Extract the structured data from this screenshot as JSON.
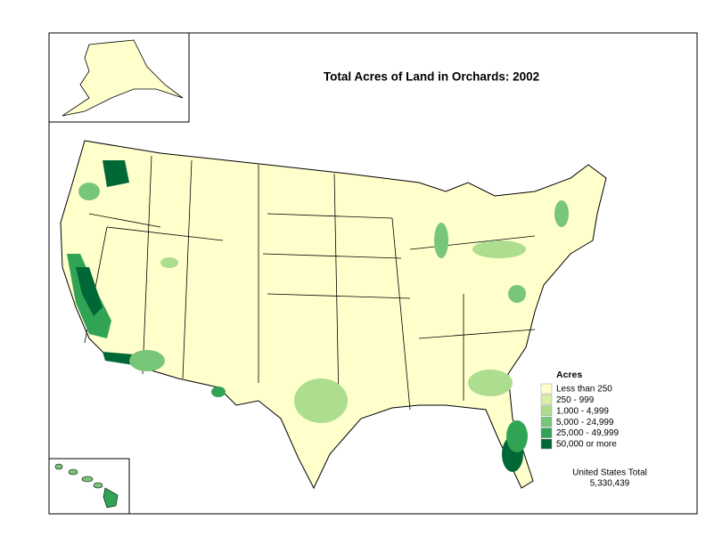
{
  "title": "Total Acres of Land in Orchards:  2002",
  "legend": {
    "title": "Acres",
    "items": [
      {
        "label": "Less than 250",
        "color": "#ffffcc"
      },
      {
        "label": "250 - 999",
        "color": "#d9f0a3"
      },
      {
        "label": "1,000 - 4,999",
        "color": "#addd8e"
      },
      {
        "label": "5,000 - 24,999",
        "color": "#78c679"
      },
      {
        "label": "25,000 - 49,999",
        "color": "#31a354"
      },
      {
        "label": "50,000 or more",
        "color": "#006837"
      }
    ]
  },
  "total": {
    "label": "United States Total",
    "value": "5,330,439"
  }
}
